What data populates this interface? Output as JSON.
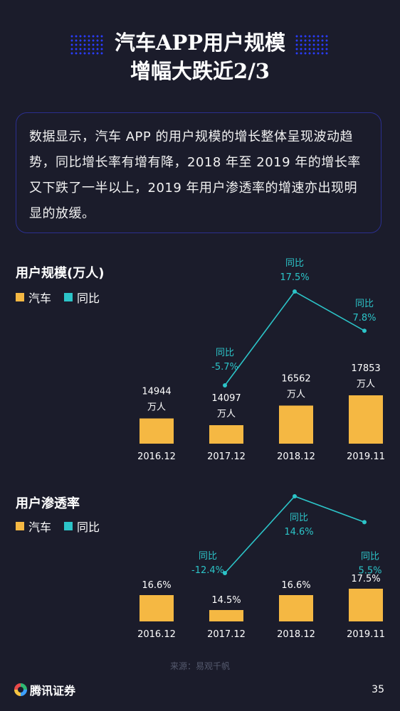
{
  "header": {
    "title_line1": "汽车APP用户规模",
    "title_line2": "增幅大跌近2/3"
  },
  "intro": {
    "text": "数据显示，汽车 APP 的用户规模的增长整体呈现波动趋势，同比增长率有增有降，2018 年至 2019 年的增长率又下跌了一半以上，2019 年用户渗透率的增速亦出现明显的放缓。"
  },
  "legend": {
    "car": "汽车",
    "yoy": "同比"
  },
  "colors": {
    "bar": "#f5b843",
    "line": "#2cc4c8",
    "background": "#1b1c2b",
    "accent_blue": "#2a3cff"
  },
  "chart_data": [
    {
      "type": "bar",
      "title": "用户规模(万人)",
      "categories": [
        "2016.12",
        "2017.12",
        "2018.12",
        "2019.11"
      ],
      "series": [
        {
          "name": "汽车",
          "type": "bar",
          "values": [
            14944,
            14097,
            16562,
            17853
          ],
          "labels": [
            "14944",
            "14097",
            "16562",
            "17853"
          ],
          "unit": "万人"
        },
        {
          "name": "同比",
          "type": "line",
          "values": [
            null,
            -5.7,
            17.5,
            7.8
          ],
          "labels": [
            "",
            "-5.7%",
            "17.5%",
            "7.8%"
          ],
          "label_prefix": "同比"
        }
      ]
    },
    {
      "type": "bar",
      "title": "用户渗透率",
      "categories": [
        "2016.12",
        "2017.12",
        "2018.12",
        "2019.11"
      ],
      "series": [
        {
          "name": "汽车",
          "type": "bar",
          "values": [
            16.6,
            14.5,
            16.6,
            17.5
          ],
          "labels": [
            "16.6%",
            "14.5%",
            "16.6%",
            "17.5%"
          ]
        },
        {
          "name": "同比",
          "type": "line",
          "values": [
            null,
            -12.4,
            14.6,
            5.5
          ],
          "labels": [
            "",
            "-12.4%",
            "14.6%",
            "5.5%"
          ],
          "label_prefix": "同比"
        }
      ]
    }
  ],
  "footer": {
    "source": "来源：易观千帆",
    "logo_text": "腾讯证券",
    "page_number": "35"
  }
}
